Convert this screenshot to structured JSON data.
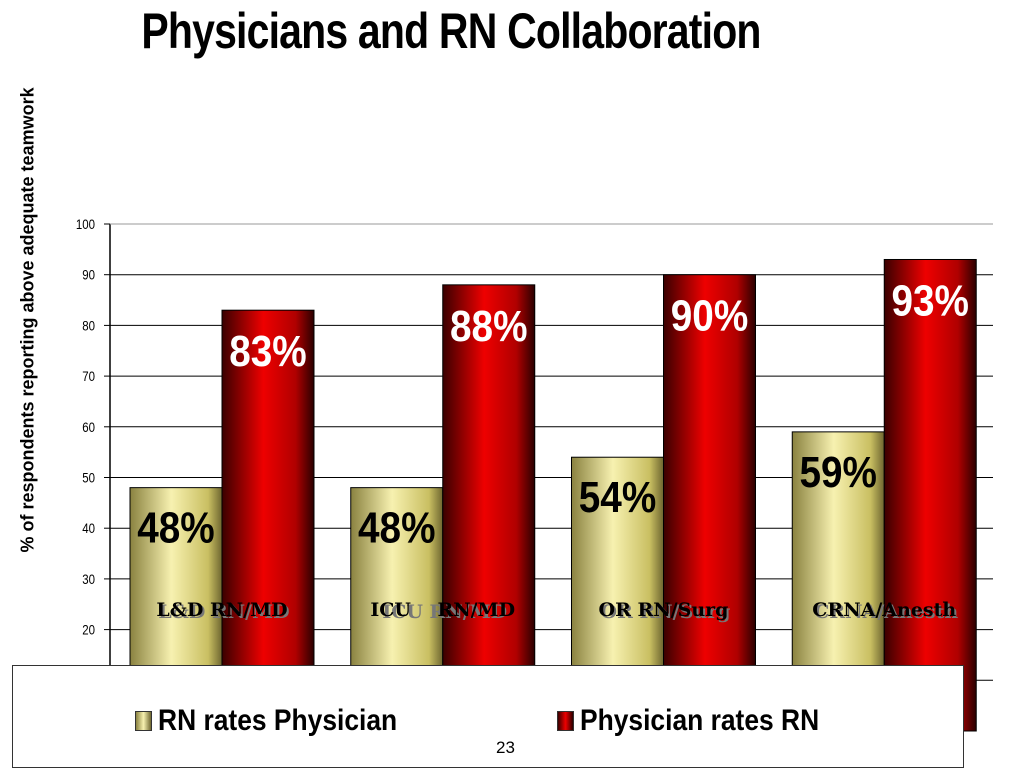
{
  "slide": {
    "page_number": "23"
  },
  "chart_data": {
    "type": "bar",
    "title": "Physicians and RN Collaboration",
    "xlabel": "",
    "ylabel": "% of respondents reporting above adequate teamwork",
    "ylim": [
      0,
      100
    ],
    "yticks": [
      20,
      30,
      40,
      50,
      60,
      70,
      80,
      90,
      100
    ],
    "grid": true,
    "categories": [
      "L&D RN/MD",
      "ICU    RN/MD",
      "OR RN/Surg",
      "CRNA/Anesth"
    ],
    "series": [
      {
        "name": "RN rates Physician",
        "values": [
          48,
          48,
          54,
          59
        ],
        "labels": [
          "48%",
          "48%",
          "54%",
          "59%"
        ],
        "color": "#e8e08a"
      },
      {
        "name": "Physician rates RN",
        "values": [
          83,
          88,
          90,
          93
        ],
        "labels": [
          "83%",
          "88%",
          "90%",
          "93%"
        ],
        "color": "#cc0000"
      }
    ],
    "legend_position": "bottom"
  }
}
